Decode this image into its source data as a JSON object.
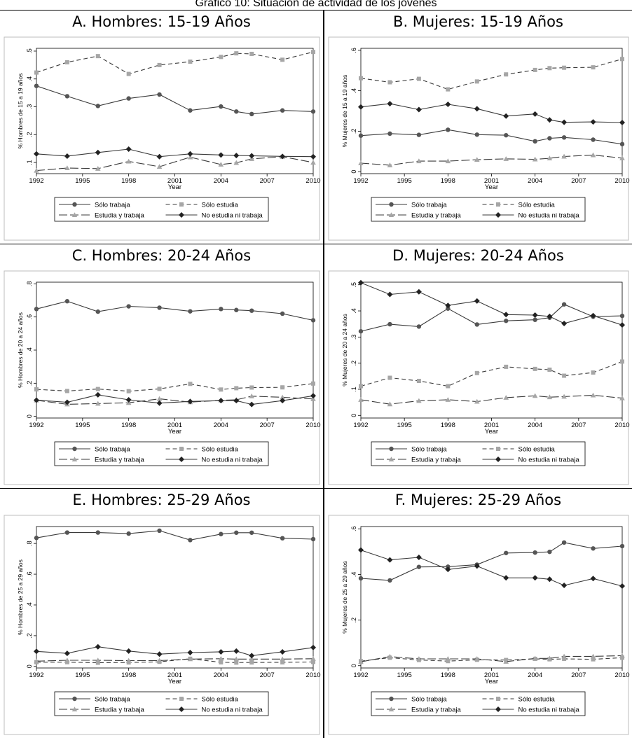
{
  "header": {
    "text": "Gráfico 10: Situación de actividad de los jóvenes"
  },
  "legend": {
    "items": [
      {
        "label": "Sólo trabaja",
        "dash": "",
        "marker": "circle"
      },
      {
        "label": "Sólo estudia",
        "dash": "6,4",
        "marker": "square"
      },
      {
        "label": "Estudia y trabaja",
        "dash": "12,4",
        "marker": "triangle"
      },
      {
        "label": "No estudia ni trabaja",
        "dash": "",
        "marker": "diamond"
      }
    ]
  },
  "colors": {
    "line": "#3a3a3a",
    "gray_marker": "#a6a6a6",
    "dark_marker": "#555555",
    "frame": "#000000"
  },
  "chart_data": [
    {
      "type": "line",
      "title": "A.   Hombres: 15-19 Años",
      "xlabel": "Year",
      "ylabel": "% Hombres de 15 a 19 años",
      "xlim": [
        1992,
        2010
      ],
      "ylim": [
        0.06,
        0.51
      ],
      "xticks": [
        1992,
        1995,
        1998,
        2001,
        2004,
        2007,
        2010
      ],
      "yticks": [
        0.1,
        0.2,
        0.3,
        0.4,
        0.5
      ],
      "ytick_labels": [
        ".1",
        ".2",
        ".3",
        ".4",
        ".5"
      ],
      "series": [
        {
          "name": "Sólo trabaja",
          "x": [
            1992,
            1994,
            1996,
            1998,
            2000,
            2002,
            2004,
            2005,
            2006,
            2008,
            2010
          ],
          "y": [
            0.375,
            0.338,
            0.303,
            0.33,
            0.344,
            0.287,
            0.301,
            0.283,
            0.274,
            0.287,
            0.283
          ]
        },
        {
          "name": "Sólo estudia",
          "x": [
            1992,
            1994,
            1996,
            1998,
            2000,
            2002,
            2004,
            2005,
            2006,
            2008,
            2010
          ],
          "y": [
            0.423,
            0.46,
            0.482,
            0.418,
            0.45,
            0.462,
            0.479,
            0.492,
            0.49,
            0.469,
            0.497
          ]
        },
        {
          "name": "Estudia y trabaja",
          "x": [
            1992,
            1994,
            1996,
            1998,
            2000,
            2002,
            2004,
            2005,
            2006,
            2008,
            2010
          ],
          "y": [
            0.071,
            0.08,
            0.078,
            0.104,
            0.085,
            0.119,
            0.093,
            0.099,
            0.113,
            0.121,
            0.1
          ]
        },
        {
          "name": "No estudia ni trabaja",
          "x": [
            1992,
            1994,
            1996,
            1998,
            2000,
            2002,
            2004,
            2005,
            2006,
            2008,
            2010
          ],
          "y": [
            0.131,
            0.123,
            0.136,
            0.148,
            0.121,
            0.131,
            0.127,
            0.125,
            0.124,
            0.122,
            0.121
          ]
        }
      ]
    },
    {
      "type": "line",
      "title": "B.   Mujeres: 15-19 Años",
      "xlabel": "Year",
      "ylabel": "% Mujeres de 15 a 19 años",
      "xlim": [
        1992,
        2010
      ],
      "ylim": [
        -0.01,
        0.61
      ],
      "xticks": [
        1992,
        1995,
        1998,
        2001,
        2004,
        2007,
        2010
      ],
      "yticks": [
        0,
        0.2,
        0.4,
        0.6
      ],
      "ytick_labels": [
        "0",
        ".2",
        ".4",
        ".6"
      ],
      "series": [
        {
          "name": "Sólo trabaja",
          "x": [
            1992,
            1994,
            1996,
            1998,
            2000,
            2002,
            2004,
            2005,
            2006,
            2008,
            2010
          ],
          "y": [
            0.178,
            0.188,
            0.182,
            0.207,
            0.183,
            0.18,
            0.15,
            0.165,
            0.169,
            0.158,
            0.136
          ]
        },
        {
          "name": "Sólo estudia",
          "x": [
            1992,
            1994,
            1996,
            1998,
            2000,
            2002,
            2004,
            2005,
            2006,
            2008,
            2010
          ],
          "y": [
            0.462,
            0.442,
            0.459,
            0.407,
            0.446,
            0.481,
            0.503,
            0.512,
            0.514,
            0.516,
            0.557
          ]
        },
        {
          "name": "Estudia y trabaja",
          "x": [
            1992,
            1994,
            1996,
            1998,
            2000,
            2002,
            2004,
            2005,
            2006,
            2008,
            2010
          ],
          "y": [
            0.042,
            0.032,
            0.052,
            0.052,
            0.059,
            0.063,
            0.061,
            0.066,
            0.075,
            0.082,
            0.067
          ]
        },
        {
          "name": "No estudia ni trabaja",
          "x": [
            1992,
            1994,
            1996,
            1998,
            2000,
            2002,
            2004,
            2005,
            2006,
            2008,
            2010
          ],
          "y": [
            0.32,
            0.336,
            0.307,
            0.333,
            0.311,
            0.275,
            0.285,
            0.256,
            0.244,
            0.246,
            0.243
          ]
        }
      ]
    },
    {
      "type": "line",
      "title": "C.   Hombres: 20-24 Años",
      "xlabel": "Year",
      "ylabel": "% Hombres de 20 a 24 años",
      "xlim": [
        1992,
        2010
      ],
      "ylim": [
        -0.01,
        0.81
      ],
      "xticks": [
        1992,
        1995,
        1998,
        2001,
        2004,
        2007,
        2010
      ],
      "yticks": [
        0,
        0.2,
        0.4,
        0.6,
        0.8
      ],
      "ytick_labels": [
        "0",
        ".2",
        ".4",
        ".6",
        ".8"
      ],
      "series": [
        {
          "name": "Sólo trabaja",
          "x": [
            1992,
            1994,
            1996,
            1998,
            2000,
            2002,
            2004,
            2005,
            2006,
            2008,
            2010
          ],
          "y": [
            0.648,
            0.695,
            0.632,
            0.664,
            0.656,
            0.634,
            0.648,
            0.642,
            0.638,
            0.62,
            0.58
          ]
        },
        {
          "name": "Sólo estudia",
          "x": [
            1992,
            1994,
            1996,
            1998,
            2000,
            2002,
            2004,
            2005,
            2006,
            2008,
            2010
          ],
          "y": [
            0.163,
            0.153,
            0.165,
            0.152,
            0.166,
            0.196,
            0.162,
            0.17,
            0.174,
            0.175,
            0.198
          ]
        },
        {
          "name": "Estudia y trabaja",
          "x": [
            1992,
            1994,
            1996,
            1998,
            2000,
            2002,
            2004,
            2005,
            2006,
            2008,
            2010
          ],
          "y": [
            0.097,
            0.073,
            0.077,
            0.082,
            0.106,
            0.086,
            0.097,
            0.1,
            0.122,
            0.115,
            0.105
          ]
        },
        {
          "name": "No estudia ni trabaja",
          "x": [
            1992,
            1994,
            1996,
            1998,
            2000,
            2002,
            2004,
            2005,
            2006,
            2008,
            2010
          ],
          "y": [
            0.098,
            0.085,
            0.13,
            0.1,
            0.08,
            0.09,
            0.095,
            0.095,
            0.072,
            0.095,
            0.124
          ]
        }
      ]
    },
    {
      "type": "line",
      "title": "D.   Mujeres: 20-24 Años",
      "xlabel": "Year",
      "ylabel": "% Mujeres de 20 a 24 años",
      "xlim": [
        1992,
        2010
      ],
      "ylim": [
        -0.01,
        0.51
      ],
      "xticks": [
        1992,
        1995,
        1998,
        2001,
        2004,
        2007,
        2010
      ],
      "yticks": [
        0,
        0.1,
        0.2,
        0.3,
        0.4,
        0.5
      ],
      "ytick_labels": [
        "0",
        ".1",
        ".2",
        ".3",
        ".4",
        ".5"
      ],
      "series": [
        {
          "name": "Sólo trabaja",
          "x": [
            1992,
            1994,
            1996,
            1998,
            2000,
            2002,
            2004,
            2005,
            2006,
            2008,
            2010
          ],
          "y": [
            0.322,
            0.349,
            0.34,
            0.409,
            0.348,
            0.362,
            0.366,
            0.374,
            0.425,
            0.378,
            0.381
          ]
        },
        {
          "name": "Sólo estudia",
          "x": [
            1992,
            1994,
            1996,
            1998,
            2000,
            2002,
            2004,
            2005,
            2006,
            2008,
            2010
          ],
          "y": [
            0.112,
            0.144,
            0.132,
            0.112,
            0.162,
            0.186,
            0.178,
            0.175,
            0.152,
            0.164,
            0.206
          ]
        },
        {
          "name": "Estudia y trabaja",
          "x": [
            1992,
            1994,
            1996,
            1998,
            2000,
            2002,
            2004,
            2005,
            2006,
            2008,
            2010
          ],
          "y": [
            0.06,
            0.043,
            0.056,
            0.06,
            0.053,
            0.068,
            0.075,
            0.07,
            0.072,
            0.077,
            0.066
          ]
        },
        {
          "name": "No estudia ni trabaja",
          "x": [
            1992,
            1994,
            1996,
            1998,
            2000,
            2002,
            2004,
            2005,
            2006,
            2008,
            2010
          ],
          "y": [
            0.508,
            0.463,
            0.473,
            0.421,
            0.438,
            0.386,
            0.384,
            0.379,
            0.352,
            0.382,
            0.346
          ]
        }
      ]
    },
    {
      "type": "line",
      "title": "E.   Hombres: 25-29 Años",
      "xlabel": "Year",
      "ylabel": "% Hombres de 25 a 29 años",
      "xlim": [
        1992,
        2010
      ],
      "ylim": [
        -0.01,
        0.91
      ],
      "xticks": [
        1992,
        1995,
        1998,
        2001,
        2004,
        2007,
        2010
      ],
      "yticks": [
        0,
        0.2,
        0.4,
        0.6,
        0.8
      ],
      "ytick_labels": [
        "0",
        ".2",
        ".4",
        ".6",
        ".8"
      ],
      "series": [
        {
          "name": "Sólo trabaja",
          "x": [
            1992,
            1994,
            1996,
            1998,
            2000,
            2002,
            2004,
            2005,
            2006,
            2008,
            2010
          ],
          "y": [
            0.836,
            0.871,
            0.871,
            0.864,
            0.883,
            0.822,
            0.861,
            0.87,
            0.87,
            0.834,
            0.828
          ]
        },
        {
          "name": "Sólo estudia",
          "x": [
            1992,
            1994,
            1996,
            1998,
            2000,
            2002,
            2004,
            2005,
            2006,
            2008,
            2010
          ],
          "y": [
            0.028,
            0.028,
            0.024,
            0.026,
            0.03,
            0.05,
            0.027,
            0.025,
            0.026,
            0.027,
            0.029
          ]
        },
        {
          "name": "Estudia y trabaja",
          "x": [
            1992,
            1994,
            1996,
            1998,
            2000,
            2002,
            2004,
            2005,
            2006,
            2008,
            2010
          ],
          "y": [
            0.034,
            0.04,
            0.04,
            0.038,
            0.038,
            0.048,
            0.05,
            0.048,
            0.048,
            0.048,
            0.05
          ]
        },
        {
          "name": "No estudia ni trabaja",
          "x": [
            1992,
            1994,
            1996,
            1998,
            2000,
            2002,
            2004,
            2005,
            2006,
            2008,
            2010
          ],
          "y": [
            0.098,
            0.085,
            0.128,
            0.1,
            0.08,
            0.09,
            0.095,
            0.1,
            0.07,
            0.095,
            0.123
          ]
        }
      ]
    },
    {
      "type": "line",
      "title": "F.   Mujeres: 25-29 Años",
      "xlabel": "Year",
      "ylabel": "% Mujeres de 25 a 29 años",
      "xlim": [
        1992,
        2010
      ],
      "ylim": [
        -0.01,
        0.61
      ],
      "xticks": [
        1992,
        1995,
        1998,
        2001,
        2004,
        2007,
        2010
      ],
      "yticks": [
        0,
        0.2,
        0.4,
        0.6
      ],
      "ytick_labels": [
        "0",
        ".2",
        ".4",
        ".6"
      ],
      "series": [
        {
          "name": "Sólo trabaja",
          "x": [
            1992,
            1994,
            1996,
            1998,
            2000,
            2002,
            2004,
            2005,
            2006,
            2008,
            2010
          ],
          "y": [
            0.383,
            0.374,
            0.433,
            0.434,
            0.443,
            0.494,
            0.496,
            0.499,
            0.54,
            0.514,
            0.524
          ]
        },
        {
          "name": "Sólo estudia",
          "x": [
            1992,
            1994,
            1996,
            1998,
            2000,
            2002,
            2004,
            2005,
            2006,
            2008,
            2010
          ],
          "y": [
            0.02,
            0.035,
            0.025,
            0.02,
            0.026,
            0.025,
            0.03,
            0.028,
            0.03,
            0.028,
            0.035
          ]
        },
        {
          "name": "Estudia y trabaja",
          "x": [
            1992,
            1994,
            1996,
            1998,
            2000,
            2002,
            2004,
            2005,
            2006,
            2008,
            2010
          ],
          "y": [
            0.017,
            0.04,
            0.03,
            0.03,
            0.03,
            0.018,
            0.032,
            0.032,
            0.041,
            0.041,
            0.044
          ]
        },
        {
          "name": "No estudia ni trabaja",
          "x": [
            1992,
            1994,
            1996,
            1998,
            2000,
            2002,
            2004,
            2005,
            2006,
            2008,
            2010
          ],
          "y": [
            0.507,
            0.464,
            0.475,
            0.422,
            0.437,
            0.385,
            0.385,
            0.379,
            0.352,
            0.382,
            0.349
          ]
        }
      ]
    }
  ]
}
